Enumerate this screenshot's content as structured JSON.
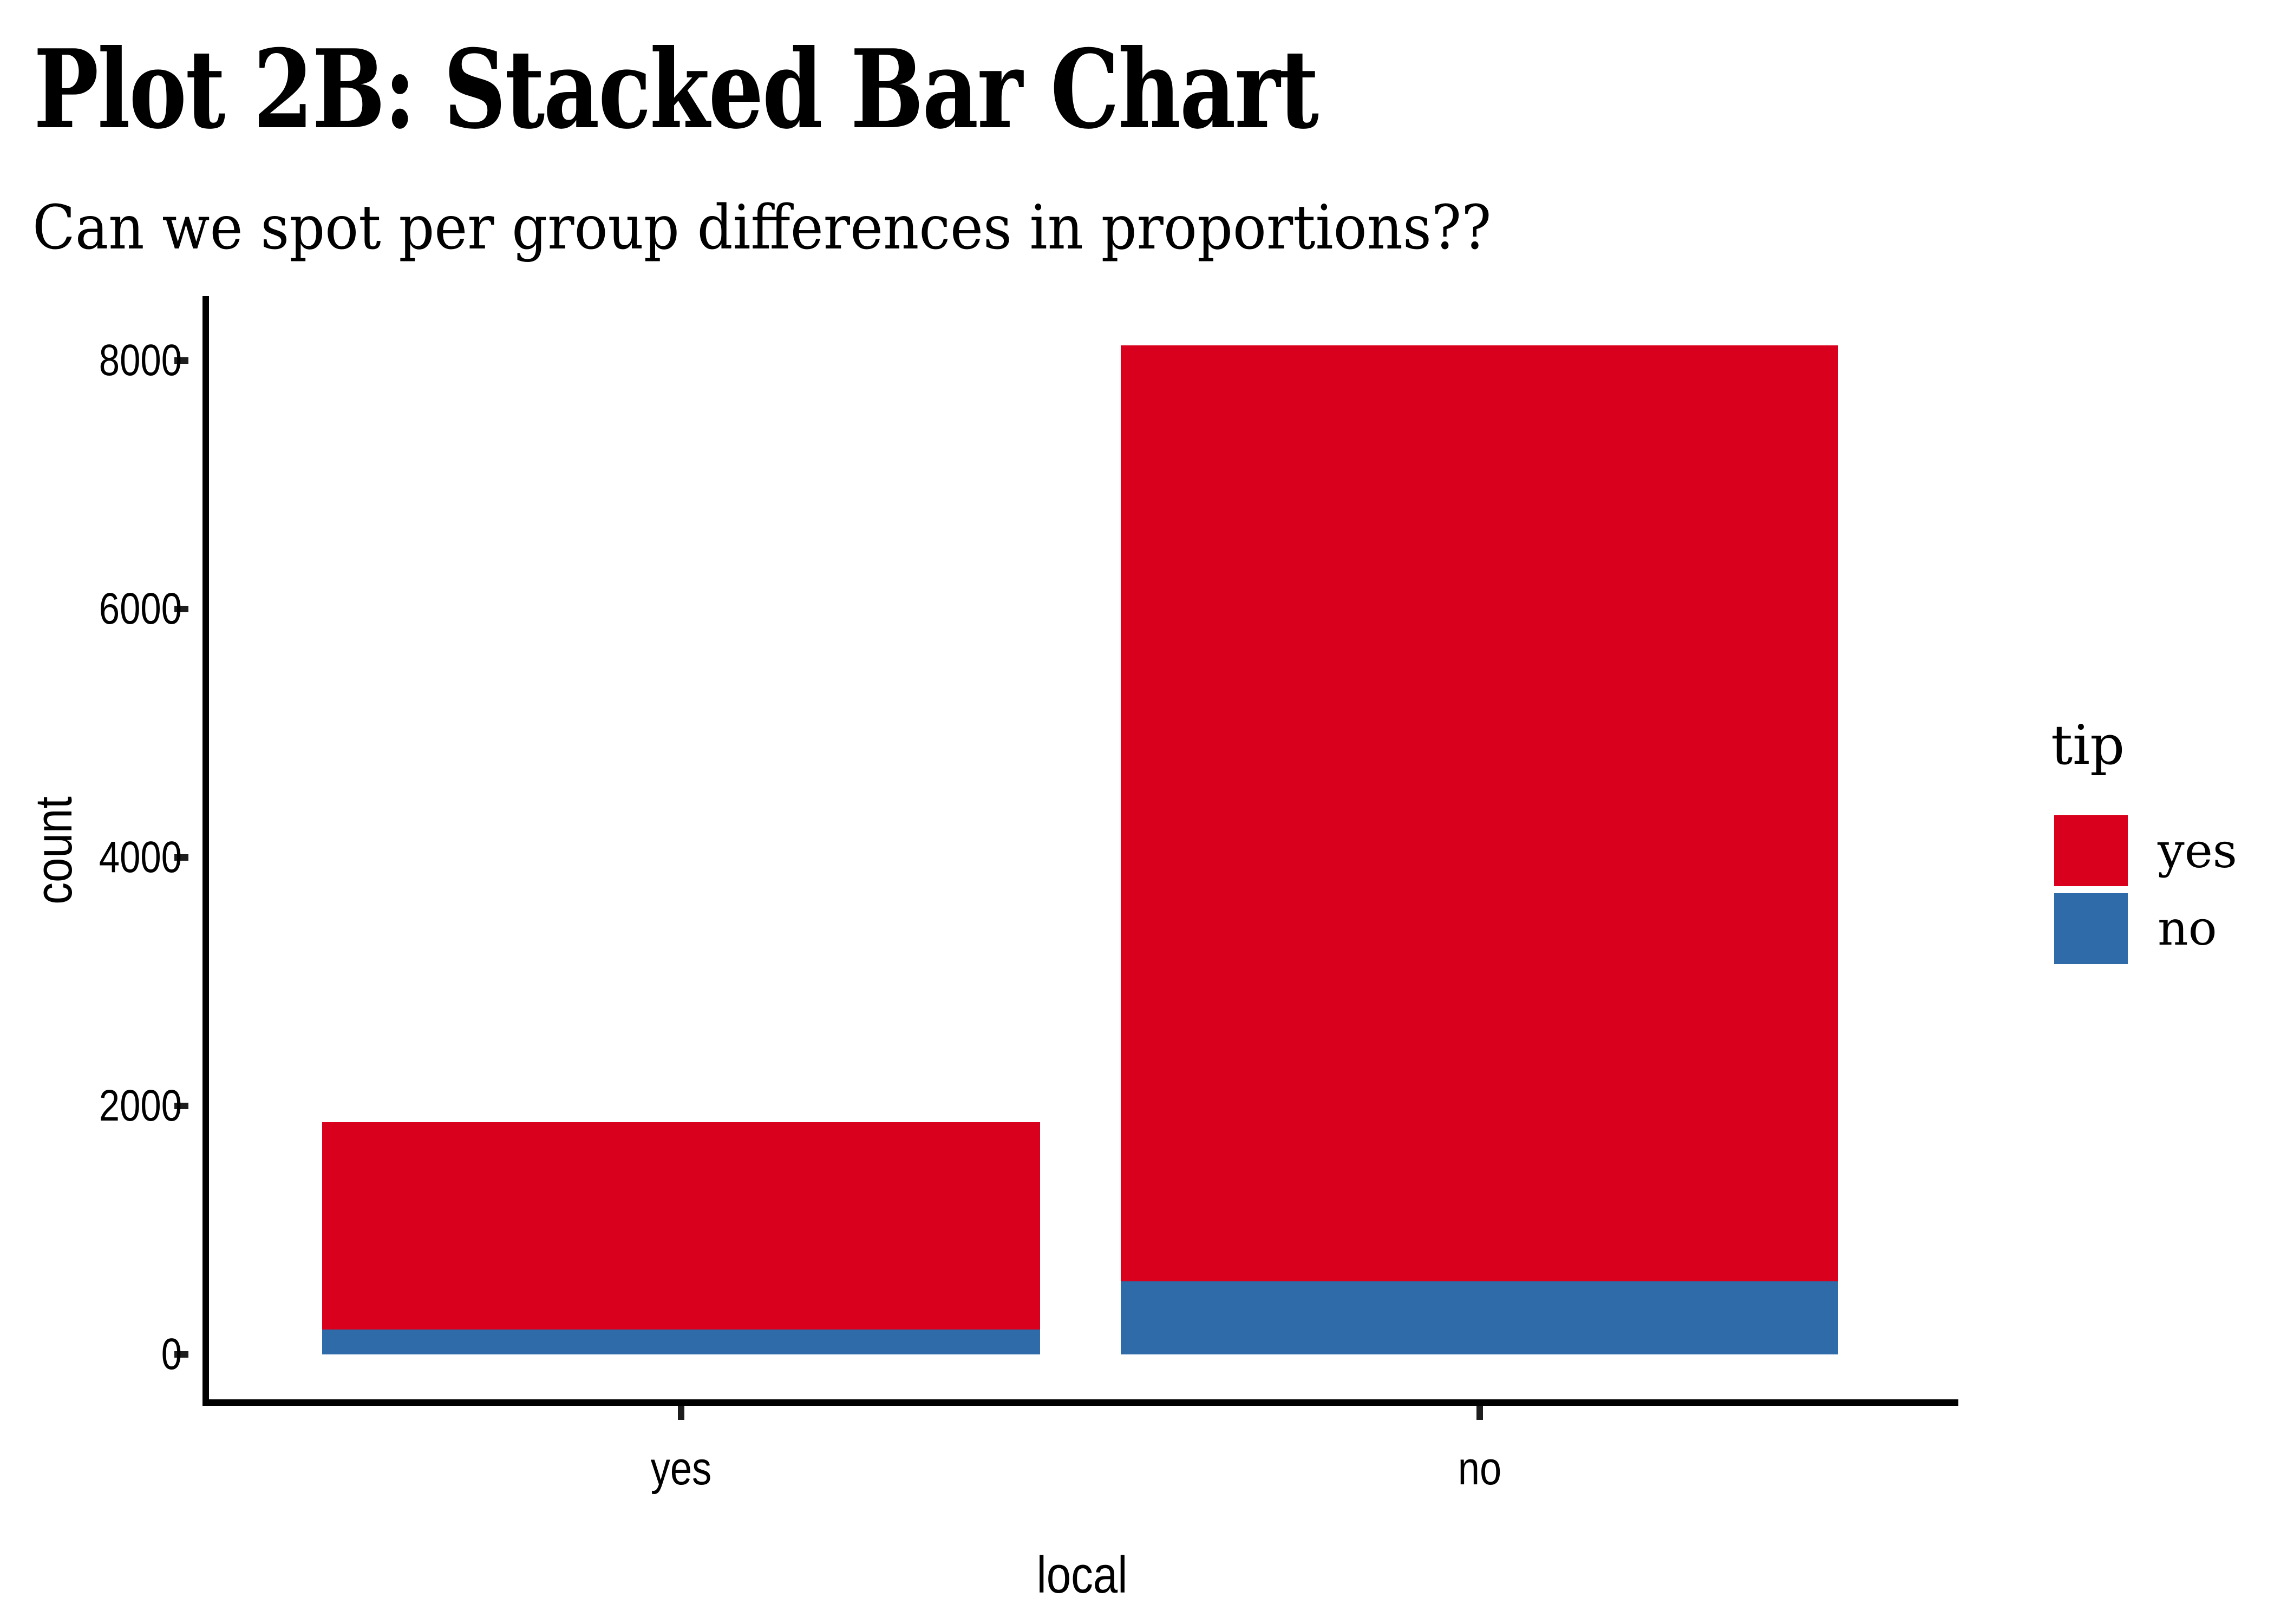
{
  "header": {
    "title": "Plot 2B: Stacked Bar Chart",
    "subtitle": "Can we spot per group differences in proportions??"
  },
  "chart_data": {
    "type": "bar",
    "stacked": true,
    "title": "Plot 2B: Stacked Bar Chart",
    "subtitle": "Can we spot per group differences in proportions??",
    "xlabel": "local",
    "ylabel": "count",
    "categories": [
      "yes",
      "no"
    ],
    "series": [
      {
        "name": "no",
        "color": "#2E6BA8",
        "values": [
          200,
          590
        ]
      },
      {
        "name": "yes",
        "color": "#D8001C",
        "values": [
          1670,
          7530
        ]
      }
    ],
    "totals": [
      1870,
      8120
    ],
    "yticks": [
      0,
      2000,
      4000,
      6000,
      8000
    ],
    "ytick_labels": [
      "0",
      "2000",
      "4000",
      "6000",
      "8000"
    ],
    "ylim": [
      0,
      8500
    ],
    "grid": false,
    "legend": {
      "title": "tip",
      "position": "right",
      "entries": [
        {
          "label": "yes",
          "color": "#D8001C"
        },
        {
          "label": "no",
          "color": "#2E6BA8"
        }
      ]
    },
    "colors": {
      "axis": "#000000",
      "background": "#FFFFFF",
      "text": "#000000"
    }
  }
}
